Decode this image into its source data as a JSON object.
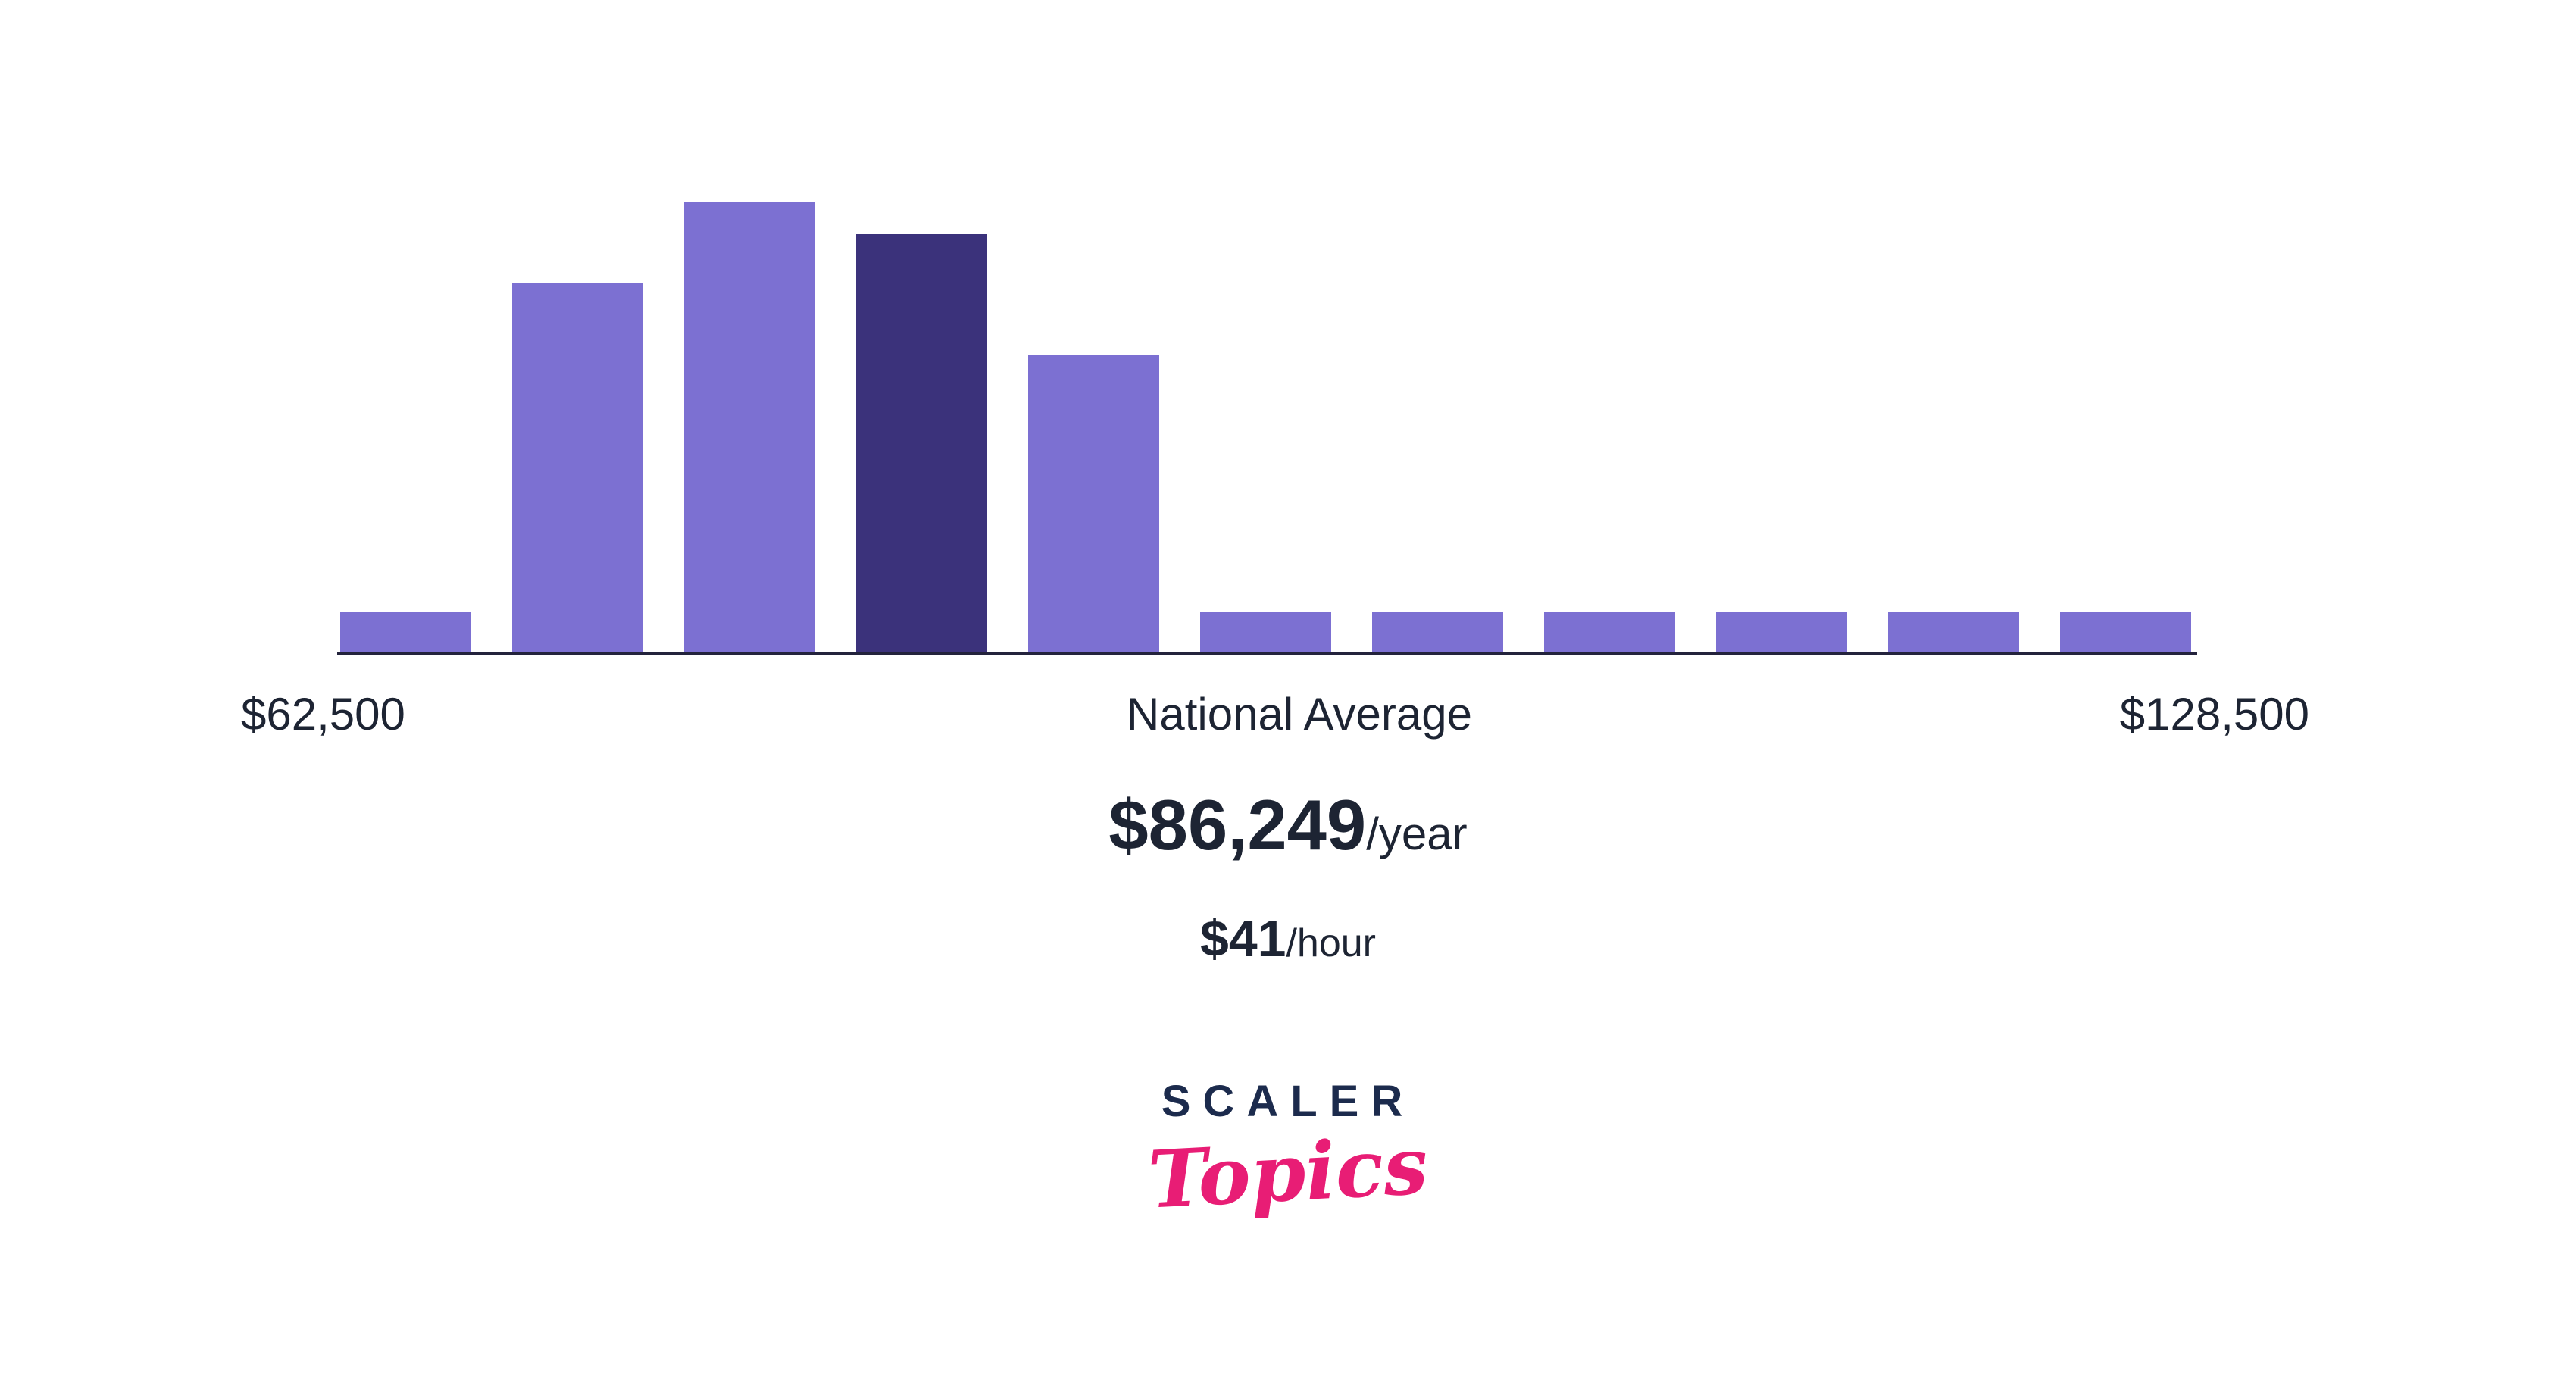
{
  "chart_data": {
    "type": "bar",
    "description": "Salary distribution histogram with highlighted national-average bin",
    "values": [
      9,
      82,
      100,
      93,
      66,
      9,
      9,
      9,
      9,
      9,
      9
    ],
    "values_unit": "relative_height_percent_of_tallest_bar",
    "highlight_index": 3,
    "bar_color": "#7c70d2",
    "highlight_color": "#3b327b",
    "axis_line_color": "#23233c",
    "x_min_label": "$62,500",
    "center_label": "National Average",
    "x_max_label": "$128,500",
    "legend": "none",
    "grid": "off"
  },
  "salary": {
    "yearly_amount": "$86,249",
    "yearly_unit": "/year",
    "hourly_amount": "$41",
    "hourly_unit": "/hour"
  },
  "logo": {
    "primary": "SCALER",
    "secondary": "Topics",
    "primary_color": "#1c2b4d",
    "secondary_color": "#e81d75"
  }
}
